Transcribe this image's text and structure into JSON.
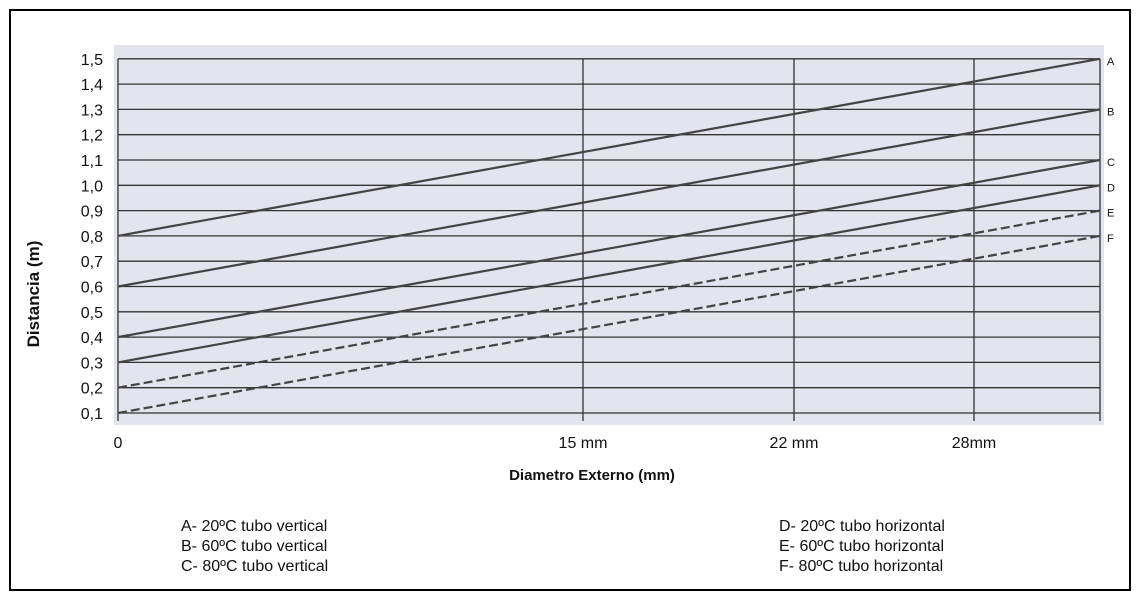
{
  "chart_data": {
    "type": "line",
    "ylabel": "Distancia (m)",
    "xlabel": "Diametro Externo (mm)",
    "y_ticks": [
      "0,1",
      "0,2",
      "0,3",
      "0,4",
      "0,5",
      "0,6",
      "0,7",
      "0,8",
      "0,9",
      "1,0",
      "1,1",
      "1,2",
      "1,3",
      "1,4",
      "1,5"
    ],
    "x_ticks": [
      "0",
      "15 mm",
      "22 mm",
      "28mm"
    ],
    "ylim": [
      0.1,
      1.5
    ],
    "grid": true,
    "series": [
      {
        "name": "A",
        "y_start": 0.8,
        "y_end": 1.5,
        "style": "solid"
      },
      {
        "name": "B",
        "y_start": 0.6,
        "y_end": 1.3,
        "style": "solid"
      },
      {
        "name": "C",
        "y_start": 0.4,
        "y_end": 1.1,
        "style": "solid"
      },
      {
        "name": "D",
        "y_start": 0.3,
        "y_end": 1.0,
        "style": "solid"
      },
      {
        "name": "E",
        "y_start": 0.2,
        "y_end": 0.9,
        "style": "dashed"
      },
      {
        "name": "F",
        "y_start": 0.1,
        "y_end": 0.8,
        "style": "dashed"
      }
    ],
    "legend_left": [
      "A- 20ºC tubo vertical",
      "B- 60ºC tubo vertical",
      "C- 80ºC tubo vertical"
    ],
    "legend_right": [
      "D- 20ºC tubo horizontal",
      "E- 60ºC tubo horizontal",
      "F- 80ºC tubo horizontal"
    ]
  }
}
